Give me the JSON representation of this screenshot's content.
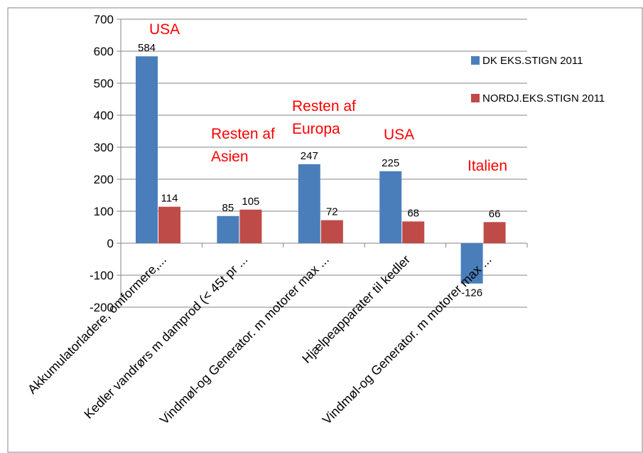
{
  "chart_data": {
    "type": "bar",
    "categories": [
      "Akkumulatorladere, omformere,...",
      "Kedler vandrørs m damprod (< 45t pr ...",
      "Vindmøl-og Generator. m motorer max ...",
      "Hjælpeapparater til kedler",
      "Vindmøl-og Generator. m motorer max ..."
    ],
    "series": [
      {
        "name": "DK EKS.STIGN  2011",
        "values": [
          584,
          85,
          247,
          225,
          -126
        ]
      },
      {
        "name": "NORDJ.EKS.STIGN  2011",
        "values": [
          114,
          105,
          72,
          68,
          66
        ]
      }
    ],
    "data_labels": [
      [
        "584",
        "85",
        "247",
        "225",
        "-126"
      ],
      [
        "114",
        "105",
        "72",
        "68",
        "66"
      ]
    ],
    "annotations": [
      [
        "USA"
      ],
      [
        "Resten af",
        "Asien"
      ],
      [
        "Resten af",
        "Europa"
      ],
      [
        "USA"
      ],
      [
        "Italien"
      ]
    ],
    "ylim": [
      -200,
      700
    ],
    "yticks": [
      -200,
      -100,
      0,
      100,
      200,
      300,
      400,
      500,
      600,
      700
    ],
    "ytick_labels": [
      "-200",
      "-100",
      "0",
      "100",
      "200",
      "300",
      "400",
      "500",
      "600",
      "700"
    ],
    "grid": true,
    "legend_position": "right",
    "colors": {
      "series_1": "#4a7ebb",
      "series_2": "#be4b48",
      "annotation": "#ff0000",
      "grid": "#868686",
      "axis": "#868686",
      "text": "#000000"
    }
  }
}
